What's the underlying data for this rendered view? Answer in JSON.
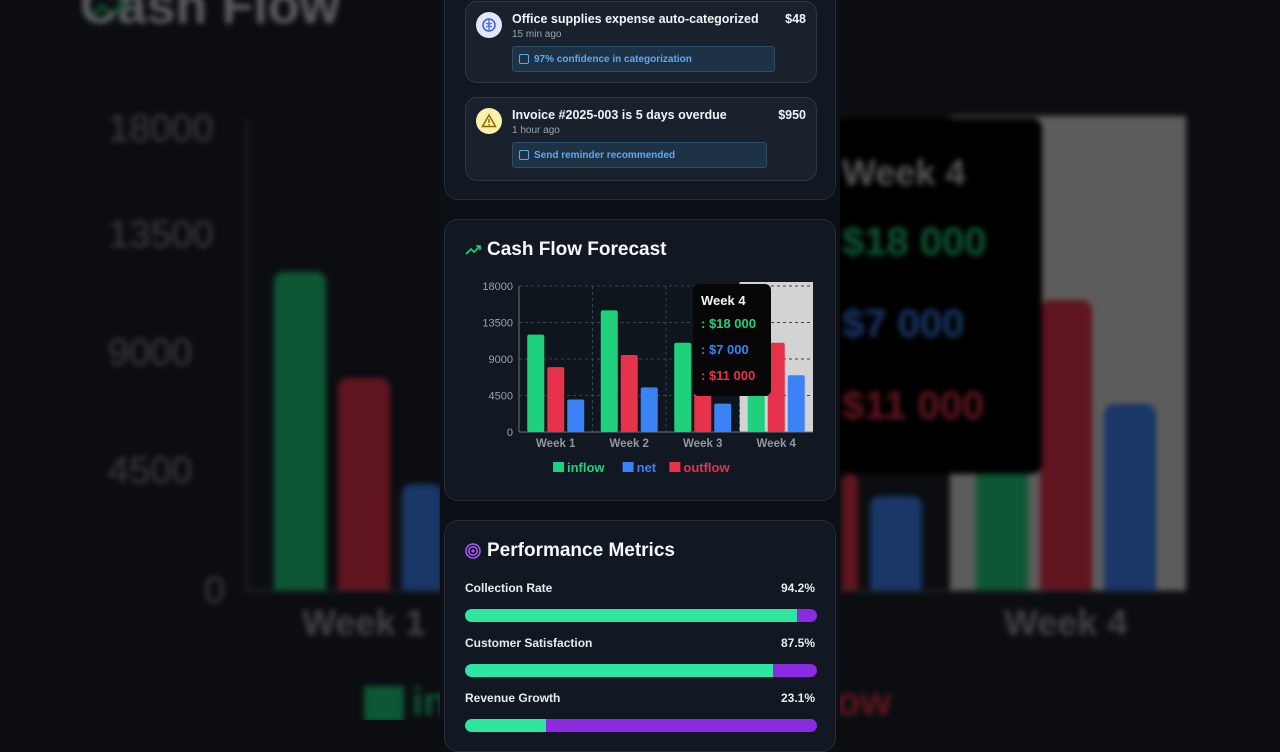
{
  "alerts": [
    {
      "title": "Office supplies expense auto-categorized",
      "time": "15 min ago",
      "amount": "$48",
      "hint": "97% confidence in categorization",
      "icon": "brain-icon"
    },
    {
      "title": "Invoice #2025-003 is 5 days overdue",
      "time": "1 hour ago",
      "amount": "$950",
      "hint": "Send reminder recommended",
      "icon": "warning-icon"
    }
  ],
  "forecast": {
    "title": "Cash Flow Forecast",
    "tooltip": {
      "week": "Week 4",
      "inflow": ": $18 000",
      "net": ": $7 000",
      "outflow": ": $11 000"
    }
  },
  "chart_data": {
    "type": "bar",
    "categories": [
      "Week 1",
      "Week 2",
      "Week 3",
      "Week 4"
    ],
    "series": [
      {
        "name": "inflow",
        "values": [
          12000,
          15000,
          11000,
          18000
        ],
        "color": "#1fd07c"
      },
      {
        "name": "outflow",
        "values": [
          8000,
          9500,
          7000,
          11000
        ],
        "color": "#e6324b"
      },
      {
        "name": "net",
        "values": [
          4000,
          5500,
          3500,
          7000
        ],
        "color": "#3b82f6"
      }
    ],
    "yticks": [
      "0",
      "4500",
      "9000",
      "13500",
      "18000"
    ],
    "ylim": [
      0,
      18000
    ],
    "legend": [
      "inflow",
      "net",
      "outflow"
    ],
    "highlighted_category": "Week 4"
  },
  "metrics": {
    "title": "Performance Metrics",
    "items": [
      {
        "label": "Collection Rate",
        "value": "94.2%",
        "fraction": 0.942
      },
      {
        "label": "Customer Satisfaction",
        "value": "87.5%",
        "fraction": 0.875
      },
      {
        "label": "Revenue Growth",
        "value": "23.1%",
        "fraction": 0.231
      }
    ]
  },
  "background": {
    "title": "Cash Flow",
    "legend_fragments": [
      "in",
      "ow"
    ]
  },
  "colors": {
    "inflow": "#1fd07c",
    "net": "#3b82f6",
    "outflow": "#e6324b",
    "progress": "#2ee6a0",
    "progress_track": "#8a2be2"
  }
}
